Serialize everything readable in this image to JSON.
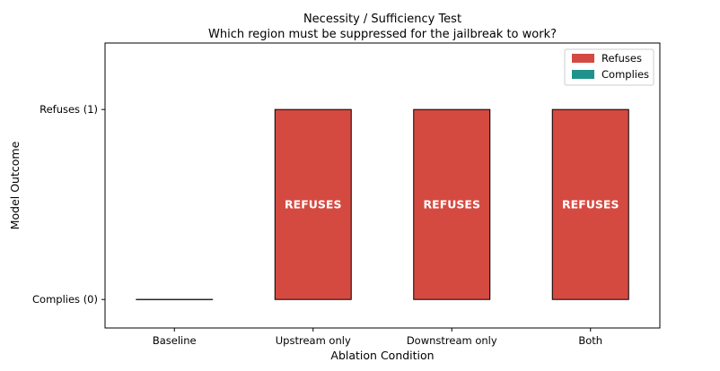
{
  "chart_data": {
    "type": "bar",
    "title": "Necessity / Sufficiency Test",
    "subtitle": "Which region must be suppressed for the jailbreak to work?",
    "xlabel": "Ablation Condition",
    "ylabel": "Model Outcome",
    "categories": [
      "Baseline",
      "Upstream only",
      "Downstream only",
      "Both"
    ],
    "values": [
      0,
      1,
      1,
      1
    ],
    "bar_labels": [
      "",
      "REFUSES",
      "REFUSES",
      "REFUSES"
    ],
    "bar_series": [
      "Complies",
      "Refuses",
      "Refuses",
      "Refuses"
    ],
    "yticks": [
      {
        "value": 0,
        "label": "Complies (0)"
      },
      {
        "value": 1,
        "label": "Refuses (1)"
      }
    ],
    "ylim": [
      -0.15,
      1.35
    ],
    "grid": false,
    "legend_position": "top-right",
    "series": [
      {
        "name": "Refuses",
        "color": "#d44a41"
      },
      {
        "name": "Complies",
        "color": "#21918c"
      }
    ]
  }
}
